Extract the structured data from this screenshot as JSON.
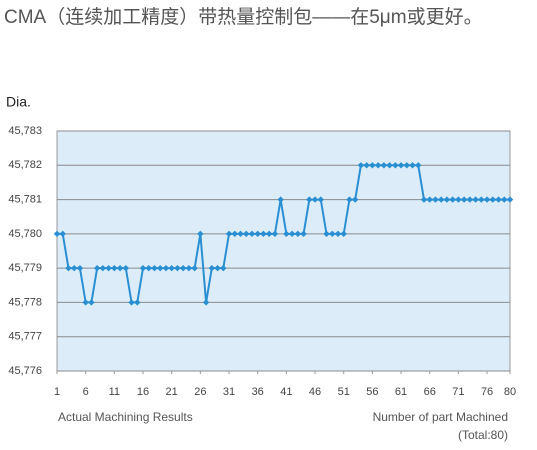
{
  "chart_data": {
    "type": "line",
    "title": "CMA（连续加工精度）带热量控制包——在5μm或更好。",
    "y_label": "Dia.",
    "annotation": "Actual Machining Results",
    "x_label": "Number of part Machined",
    "x_label_note": "(Total:80)",
    "x": [
      1,
      2,
      3,
      4,
      5,
      6,
      7,
      8,
      9,
      10,
      11,
      12,
      13,
      14,
      15,
      16,
      17,
      18,
      19,
      20,
      21,
      22,
      23,
      24,
      25,
      26,
      27,
      28,
      29,
      30,
      31,
      32,
      33,
      34,
      35,
      36,
      37,
      38,
      39,
      40,
      41,
      42,
      43,
      44,
      45,
      46,
      47,
      48,
      49,
      50,
      51,
      52,
      53,
      54,
      55,
      56,
      57,
      58,
      59,
      60,
      61,
      62,
      63,
      64,
      65,
      66,
      67,
      68,
      69,
      70,
      71,
      72,
      73,
      74,
      75,
      76,
      77,
      78,
      79,
      80
    ],
    "series": [
      {
        "name": "Dia.",
        "color": "#2a8fd2",
        "values": [
          45.78,
          45.78,
          45.779,
          45.779,
          45.779,
          45.778,
          45.778,
          45.779,
          45.779,
          45.779,
          45.779,
          45.779,
          45.779,
          45.778,
          45.778,
          45.779,
          45.779,
          45.779,
          45.779,
          45.779,
          45.779,
          45.779,
          45.779,
          45.779,
          45.779,
          45.78,
          45.778,
          45.779,
          45.779,
          45.779,
          45.78,
          45.78,
          45.78,
          45.78,
          45.78,
          45.78,
          45.78,
          45.78,
          45.78,
          45.781,
          45.78,
          45.78,
          45.78,
          45.78,
          45.781,
          45.781,
          45.781,
          45.78,
          45.78,
          45.78,
          45.78,
          45.781,
          45.781,
          45.782,
          45.782,
          45.782,
          45.782,
          45.782,
          45.782,
          45.782,
          45.782,
          45.782,
          45.782,
          45.782,
          45.781,
          45.781,
          45.781,
          45.781,
          45.781,
          45.781,
          45.781,
          45.781,
          45.781,
          45.781,
          45.781,
          45.781,
          45.781,
          45.781,
          45.781,
          45.781
        ]
      }
    ],
    "xlim": [
      1,
      80
    ],
    "xticks": [
      1,
      6,
      11,
      16,
      21,
      26,
      31,
      36,
      41,
      46,
      51,
      56,
      61,
      66,
      71,
      76,
      80
    ],
    "ylim": [
      45.776,
      45.783
    ],
    "yticks": [
      {
        "value": 45.776,
        "label": "45,776"
      },
      {
        "value": 45.777,
        "label": "45,777"
      },
      {
        "value": 45.778,
        "label": "45,778"
      },
      {
        "value": 45.779,
        "label": "45,779"
      },
      {
        "value": 45.78,
        "label": "45,780"
      },
      {
        "value": 45.781,
        "label": "45,781"
      },
      {
        "value": 45.782,
        "label": "45,782"
      },
      {
        "value": 45.783,
        "label": "45,783"
      }
    ],
    "grid": true
  }
}
